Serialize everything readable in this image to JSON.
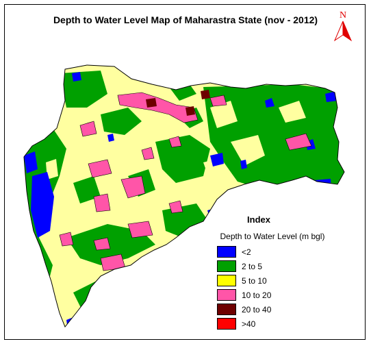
{
  "title": "Depth to Water Level Map of Maharastra State (nov - 2012)",
  "north_label": "N",
  "legend": {
    "title": "Index",
    "subtitle": "Depth to Water Level (m bgl)",
    "items": [
      {
        "label": "<2",
        "color": "#0000ff"
      },
      {
        "label": "2 to 5",
        "color": "#00a000"
      },
      {
        "label": "5 to 10",
        "color": "#ffff00"
      },
      {
        "label": "10 to 20",
        "color": "#ff55a8"
      },
      {
        "label": "20 to 40",
        "color": "#6e0000"
      },
      {
        "label": ">40",
        "color": "#ff0000"
      }
    ]
  },
  "colors": {
    "base": "#ffffa0",
    "green": "#00a000",
    "blue": "#0000ff",
    "pink": "#ff55a8",
    "maroon": "#6e0000",
    "outline": "#000000",
    "north": "#e00000"
  }
}
